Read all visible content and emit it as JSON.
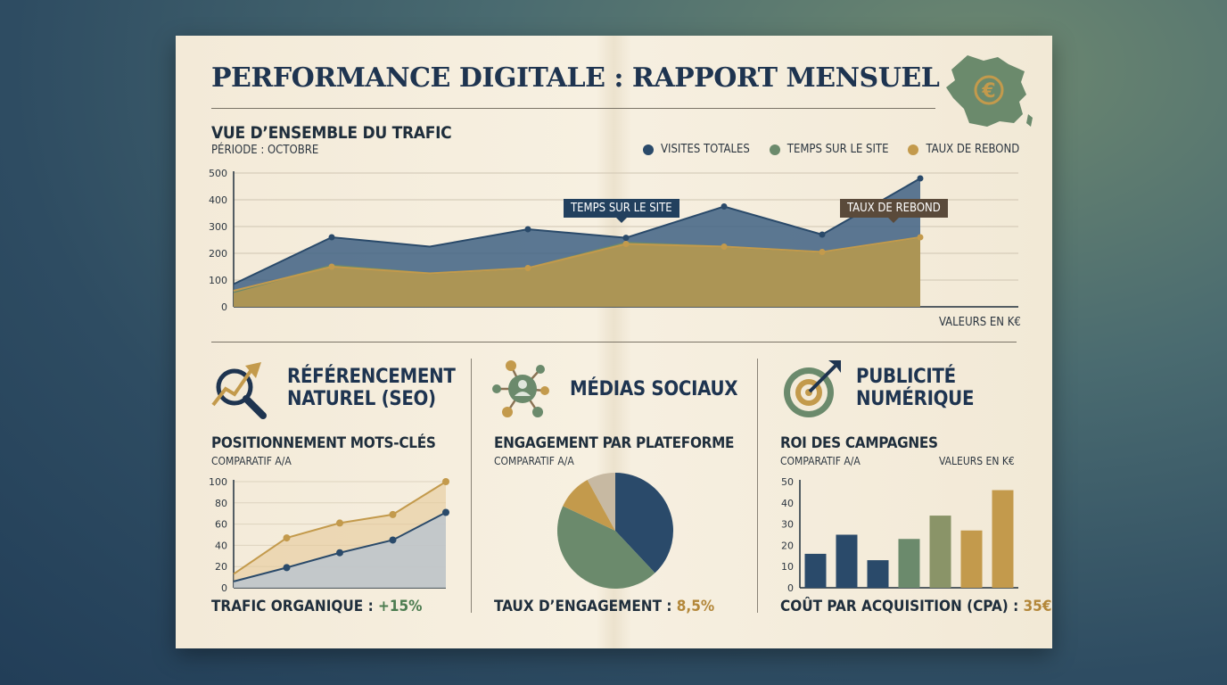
{
  "title": "PERFORMANCE DIGITALE : RAPPORT MENSUEL",
  "traffic": {
    "heading": "VUE D’ENSEMBLE DU TRAFIC",
    "period": "PÉRIODE : OCTOBRE",
    "units": "VALEURS EN K€",
    "callout_time": "TEMPS SUR LE SITE",
    "callout_bounce": "TAUX DE REBOND"
  },
  "seo": {
    "title_line1": "RÉFÉRENCEMENT",
    "title_line2": "NATUREL (SEO)",
    "heading": "POSITIONNEMENT MOTS-CLÉS",
    "sub": "COMPARATIF A/A",
    "foot_label": "TRAFIC ORGANIQUE : ",
    "foot_value": "+15%"
  },
  "social": {
    "title": "MÉDIAS SOCIAUX",
    "heading": "ENGAGEMENT PAR PLATEFORME",
    "sub": "COMPARATIF A/A",
    "foot_label": "TAUX D’ENGAGEMENT : ",
    "foot_value": "8,5%"
  },
  "ads": {
    "title_line1": "PUBLICITÉ",
    "title_line2": "NUMÉRIQUE",
    "heading": "ROI DES CAMPAGNES",
    "sub": "COMPARATIF A/A",
    "units": "VALEURS EN K€",
    "foot_label": "COÛT PAR ACQUISITION (CPA) : ",
    "foot_value": "35€"
  },
  "colors": {
    "navy": "#2a4a6a",
    "green": "#6b8a6c",
    "gold": "#c39a4c",
    "taupe": "#c7b9a2",
    "ink": "#1e3450"
  },
  "icons": [
    "france-map-euro-icon",
    "seo-magnifier-icon",
    "social-network-icon",
    "target-arrow-icon"
  ],
  "chart_data": [
    {
      "type": "area",
      "title": "VUE D’ENSEMBLE DU TRAFIC",
      "subtitle": "PÉRIODE : OCTOBRE",
      "ylim": [
        0,
        500
      ],
      "yticks": [
        0,
        100,
        200,
        300,
        400,
        500
      ],
      "legend_position": "top-right",
      "grid": true,
      "series": [
        {
          "name": "VISITES TOTALES",
          "color": "#2a4a6a",
          "x": [
            0,
            1,
            2,
            3,
            4,
            5,
            6,
            7,
            8
          ],
          "values": [
            85,
            260,
            225,
            290,
            258,
            375,
            270,
            480,
            null
          ],
          "marked": [
            false,
            true,
            false,
            true,
            true,
            true,
            true,
            true,
            false
          ]
        },
        {
          "name": "TEMPS SUR LE SITE",
          "color": "#6b8a6c",
          "x": [
            0,
            1,
            2,
            3,
            4,
            5,
            6,
            7,
            8
          ],
          "values": [
            55,
            155,
            125,
            145,
            240,
            225,
            205,
            260,
            null
          ],
          "marked": [
            false,
            false,
            false,
            false,
            false,
            false,
            false,
            false,
            false
          ]
        },
        {
          "name": "TAUX DE REBOND",
          "color": "#c39a4c",
          "x": [
            0,
            1,
            2,
            3,
            4,
            5,
            6,
            7,
            8
          ],
          "values": [
            60,
            150,
            125,
            145,
            235,
            225,
            205,
            260,
            null
          ],
          "marked": [
            false,
            true,
            false,
            true,
            true,
            true,
            true,
            true,
            false
          ]
        }
      ]
    },
    {
      "type": "area",
      "title": "POSITIONNEMENT MOTS-CLÉS",
      "ylim": [
        0,
        100
      ],
      "yticks": [
        0,
        20,
        40,
        60,
        80,
        100
      ],
      "series": [
        {
          "color": "#c39a4c",
          "x": [
            0,
            1,
            2,
            3,
            4
          ],
          "values": [
            13,
            47,
            61,
            69,
            100
          ]
        },
        {
          "color": "#2a4a6a",
          "x": [
            0,
            1,
            2,
            3,
            4
          ],
          "values": [
            6,
            19,
            33,
            45,
            71
          ]
        }
      ]
    },
    {
      "type": "pie",
      "title": "ENGAGEMENT PAR PLATEFORME",
      "slices": [
        {
          "value": 38,
          "color": "#2a4a6a"
        },
        {
          "value": 44,
          "color": "#6b8a6c"
        },
        {
          "value": 10,
          "color": "#c39a4c"
        },
        {
          "value": 8,
          "color": "#c7b9a2"
        }
      ]
    },
    {
      "type": "bar",
      "title": "ROI DES CAMPAGNES",
      "ylim": [
        0,
        50
      ],
      "yticks": [
        0,
        10,
        20,
        30,
        40,
        50
      ],
      "values": [
        16,
        25,
        13,
        23,
        34,
        27,
        46
      ],
      "colors": [
        "#2a4a6a",
        "#2a4a6a",
        "#2a4a6a",
        "#6b8a6c",
        "#8a9468",
        "#c39a4c",
        "#c39a4c"
      ]
    }
  ]
}
